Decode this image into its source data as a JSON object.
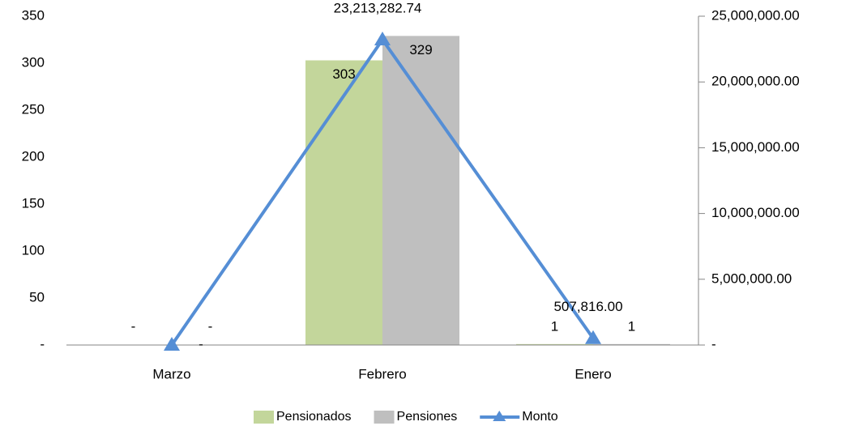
{
  "chart_data": {
    "type": "bar",
    "categories": [
      "Marzo",
      "Febrero",
      "Enero"
    ],
    "series": [
      {
        "name": "Pensionados",
        "type": "bar",
        "color": "#c3d69b",
        "values": [
          0,
          303,
          1
        ],
        "value_labels": [
          "-",
          "303",
          "1"
        ]
      },
      {
        "name": "Pensiones",
        "type": "bar",
        "color": "#bfbfbf",
        "values": [
          0,
          329,
          1
        ],
        "value_labels": [
          "-",
          "329",
          "1"
        ]
      },
      {
        "name": "Monto",
        "type": "line",
        "axis": "y2",
        "color": "#558ed5",
        "values": [
          0,
          23213282.74,
          507816.0
        ],
        "value_labels": [
          "-",
          "23,213,282.74",
          "507,816.00"
        ]
      }
    ],
    "ylim": [
      0,
      350
    ],
    "yticks": [
      {
        "value": 0,
        "label": "-"
      },
      50,
      100,
      150,
      200,
      250,
      300,
      350
    ],
    "y2lim": [
      0,
      25000000
    ],
    "y2ticks": [
      {
        "value": 0,
        "label": "-"
      },
      {
        "value": 5000000,
        "label": "5,000,000.00"
      },
      {
        "value": 10000000,
        "label": "10,000,000.00"
      },
      {
        "value": 15000000,
        "label": "15,000,000.00"
      },
      {
        "value": 20000000,
        "label": "20,000,000.00"
      },
      {
        "value": 25000000,
        "label": "25,000,000.00"
      }
    ],
    "legend": "bottom"
  }
}
